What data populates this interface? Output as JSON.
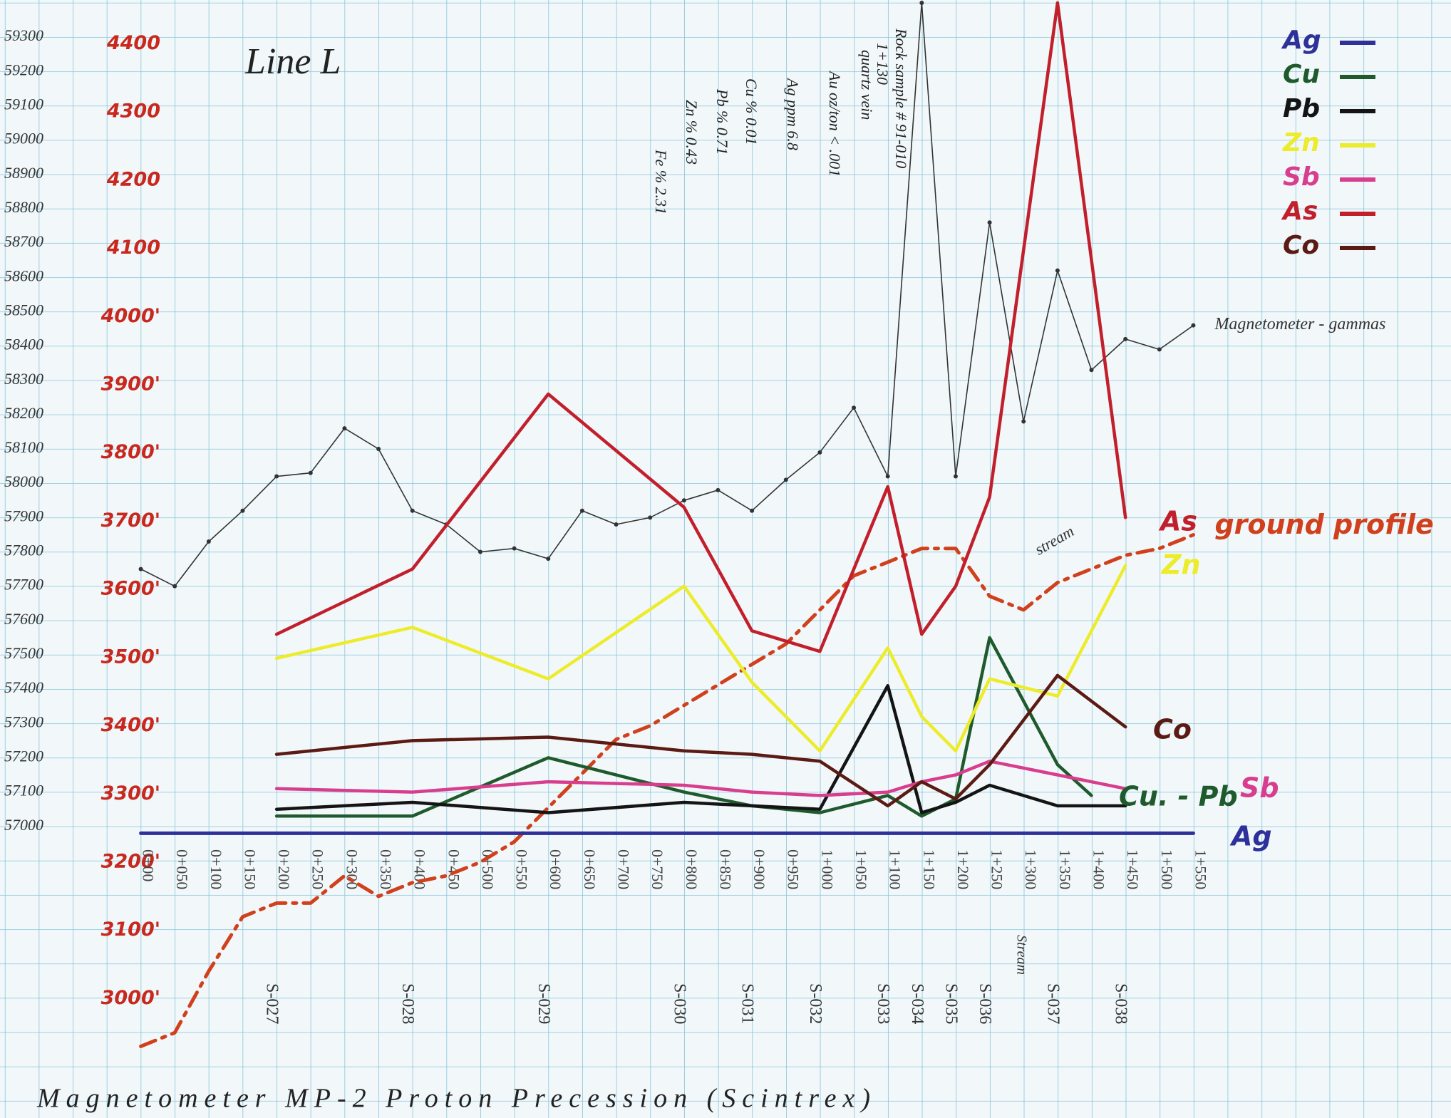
{
  "chart_data": {
    "type": "line",
    "title": "Line L",
    "caption": "Magnetometer MP-2 Proton Precession (Scintrex)",
    "notes": [
      "Rock sample # 91-010",
      "1+130",
      "quartz vein",
      "Au oz/ton < .001",
      "Ag ppm 6.8",
      "Cu % 0.01",
      "Pb % 0.71",
      "Zn % 0.43",
      "Fe % 2.31"
    ],
    "annotations": [
      "Cu. - Pb",
      "stream",
      "Stream"
    ],
    "legend": "upper right",
    "xlim": [
      -200,
      1920
    ],
    "xticks": [
      {
        "value": 0,
        "label": "0+00"
      },
      {
        "value": 50,
        "label": "0+050"
      },
      {
        "value": 100,
        "label": "0+100"
      },
      {
        "value": 150,
        "label": "0+150"
      },
      {
        "value": 200,
        "label": "0+200"
      },
      {
        "value": 250,
        "label": "0+250"
      },
      {
        "value": 300,
        "label": "0+300"
      },
      {
        "value": 350,
        "label": "0+350"
      },
      {
        "value": 400,
        "label": "0+400"
      },
      {
        "value": 450,
        "label": "0+450"
      },
      {
        "value": 500,
        "label": "0+500"
      },
      {
        "value": 550,
        "label": "0+550"
      },
      {
        "value": 600,
        "label": "0+600"
      },
      {
        "value": 650,
        "label": "0+650"
      },
      {
        "value": 700,
        "label": "0+700"
      },
      {
        "value": 750,
        "label": "0+750"
      },
      {
        "value": 800,
        "label": "0+800"
      },
      {
        "value": 850,
        "label": "0+850"
      },
      {
        "value": 900,
        "label": "0+900"
      },
      {
        "value": 950,
        "label": "0+950"
      },
      {
        "value": 1000,
        "label": "1+000"
      },
      {
        "value": 1050,
        "label": "1+050"
      },
      {
        "value": 1100,
        "label": "1+100"
      },
      {
        "value": 1150,
        "label": "1+150"
      },
      {
        "value": 1200,
        "label": "1+200"
      },
      {
        "value": 1250,
        "label": "1+250"
      },
      {
        "value": 1300,
        "label": "1+300"
      },
      {
        "value": 1350,
        "label": "1+350"
      },
      {
        "value": 1400,
        "label": "1+400"
      },
      {
        "value": 1450,
        "label": "1+450"
      },
      {
        "value": 1500,
        "label": "1+500"
      },
      {
        "value": 1550,
        "label": "1+550"
      }
    ],
    "ylim": [
      56200,
      59400
    ],
    "yticks": [
      57000,
      57100,
      57200,
      57300,
      57400,
      57500,
      57600,
      57700,
      57800,
      57900,
      58000,
      58100,
      58200,
      58300,
      58400,
      58500,
      58600,
      58700,
      58800,
      58900,
      59000,
      59100,
      59200,
      59300
    ],
    "y2lim": [
      2850,
      4460
    ],
    "y2ticks": [
      {
        "value": 3000,
        "label": "3000'"
      },
      {
        "value": 3100,
        "label": "3100'"
      },
      {
        "value": 3200,
        "label": "3200'"
      },
      {
        "value": 3300,
        "label": "3300'"
      },
      {
        "value": 3400,
        "label": "3400'"
      },
      {
        "value": 3500,
        "label": "3500'"
      },
      {
        "value": 3600,
        "label": "3600'"
      },
      {
        "value": 3700,
        "label": "3700'"
      },
      {
        "value": 3800,
        "label": "3800'"
      },
      {
        "value": 3900,
        "label": "3900'"
      },
      {
        "value": 4000,
        "label": "4000'"
      },
      {
        "value": 4100,
        "label": "4100"
      },
      {
        "value": 4200,
        "label": "4200"
      },
      {
        "value": 4300,
        "label": "4300"
      },
      {
        "value": 4400,
        "label": "4400"
      }
    ],
    "samples": {
      "x": [
        200,
        400,
        600,
        800,
        900,
        1000,
        1100,
        1150,
        1200,
        1250,
        1350,
        1450
      ],
      "labels": [
        "S-027",
        "S-028",
        "S-029",
        "S-030",
        "S-031",
        "S-032",
        "S-033",
        "S-034",
        "S-035",
        "S-036",
        "S-037",
        "S-038"
      ]
    },
    "series": [
      {
        "name": "Ag",
        "color": "#2e3199",
        "style": "axis",
        "legend": true,
        "x": [
          0,
          1550
        ],
        "values": [
          56980,
          56980
        ]
      },
      {
        "name": "Cu",
        "color": "#1f5a2c",
        "style": "thick",
        "legend": true,
        "x": [
          200,
          400,
          600,
          800,
          900,
          1000,
          1100,
          1150,
          1200,
          1250,
          1350,
          1400
        ],
        "values": [
          57030,
          57030,
          57200,
          57100,
          57060,
          57040,
          57090,
          57030,
          57080,
          57550,
          57180,
          57090
        ]
      },
      {
        "name": "Pb",
        "color": "#141414",
        "style": "thick",
        "legend": true,
        "x": [
          200,
          400,
          600,
          800,
          900,
          1000,
          1100,
          1150,
          1200,
          1250,
          1350,
          1450
        ],
        "values": [
          57050,
          57070,
          57040,
          57070,
          57060,
          57050,
          57410,
          57040,
          57070,
          57120,
          57060,
          57060
        ]
      },
      {
        "name": "Zn",
        "color": "#ecec2a",
        "style": "thick",
        "legend": true,
        "x": [
          200,
          400,
          600,
          800,
          900,
          1000,
          1100,
          1150,
          1200,
          1250,
          1350,
          1450
        ],
        "values": [
          57490,
          57580,
          57430,
          57700,
          57420,
          57220,
          57520,
          57320,
          57220,
          57430,
          57380,
          57760
        ]
      },
      {
        "name": "Sb",
        "color": "#d83d8e",
        "style": "thick",
        "legend": true,
        "x": [
          200,
          400,
          600,
          800,
          900,
          1000,
          1100,
          1150,
          1200,
          1250,
          1350,
          1450
        ],
        "values": [
          57110,
          57100,
          57130,
          57120,
          57100,
          57090,
          57100,
          57130,
          57150,
          57190,
          57150,
          57110
        ]
      },
      {
        "name": "As",
        "color": "#c21f2c",
        "style": "thick",
        "legend": true,
        "x": [
          200,
          400,
          600,
          800,
          900,
          1000,
          1100,
          1150,
          1200,
          1250,
          1350,
          1450
        ],
        "values": [
          57560,
          57750,
          58260,
          57930,
          57570,
          57510,
          57990,
          57560,
          57700,
          57960,
          59400,
          57900
        ]
      },
      {
        "name": "Co",
        "color": "#5c1a14",
        "style": "thick",
        "legend": true,
        "x": [
          200,
          400,
          600,
          800,
          900,
          1000,
          1100,
          1150,
          1200,
          1250,
          1350,
          1450
        ],
        "values": [
          57210,
          57250,
          57260,
          57220,
          57210,
          57190,
          57060,
          57130,
          57080,
          57180,
          57440,
          57290
        ]
      },
      {
        "name": "Magnetometer - gammas",
        "color": "#333333",
        "style": "thin",
        "legend": false,
        "x": [
          0,
          50,
          100,
          150,
          200,
          250,
          300,
          350,
          400,
          450,
          500,
          550,
          600,
          650,
          700,
          750,
          800,
          850,
          900,
          950,
          1000,
          1050,
          1100,
          1150,
          1200,
          1250,
          1300,
          1350,
          1400,
          1450,
          1500,
          1550
        ],
        "values": [
          57750,
          57700,
          57830,
          57920,
          58020,
          58030,
          58160,
          58100,
          57920,
          57880,
          57800,
          57810,
          57780,
          57920,
          57880,
          57900,
          57950,
          57980,
          57920,
          58010,
          58090,
          58220,
          58020,
          59400,
          58020,
          58760,
          58180,
          58620,
          58330,
          58420,
          58390,
          58460
        ]
      },
      {
        "name": "ground profile",
        "color": "#d1401c",
        "style": "dashed",
        "legend": false,
        "axis": "y2",
        "x": [
          0,
          50,
          100,
          150,
          200,
          250,
          300,
          350,
          400,
          450,
          500,
          550,
          600,
          650,
          700,
          750,
          800,
          850,
          900,
          950,
          1000,
          1050,
          1100,
          1150,
          1200,
          1250,
          1300,
          1350,
          1400,
          1450,
          1500,
          1550
        ],
        "values": [
          2930,
          2950,
          3040,
          3120,
          3140,
          3140,
          3180,
          3150,
          3170,
          3180,
          3200,
          3230,
          3280,
          3330,
          3380,
          3400,
          3430,
          3460,
          3490,
          3520,
          3570,
          3620,
          3640,
          3660,
          3660,
          3590,
          3570,
          3610,
          3630,
          3650,
          3660,
          3680
        ]
      }
    ]
  }
}
